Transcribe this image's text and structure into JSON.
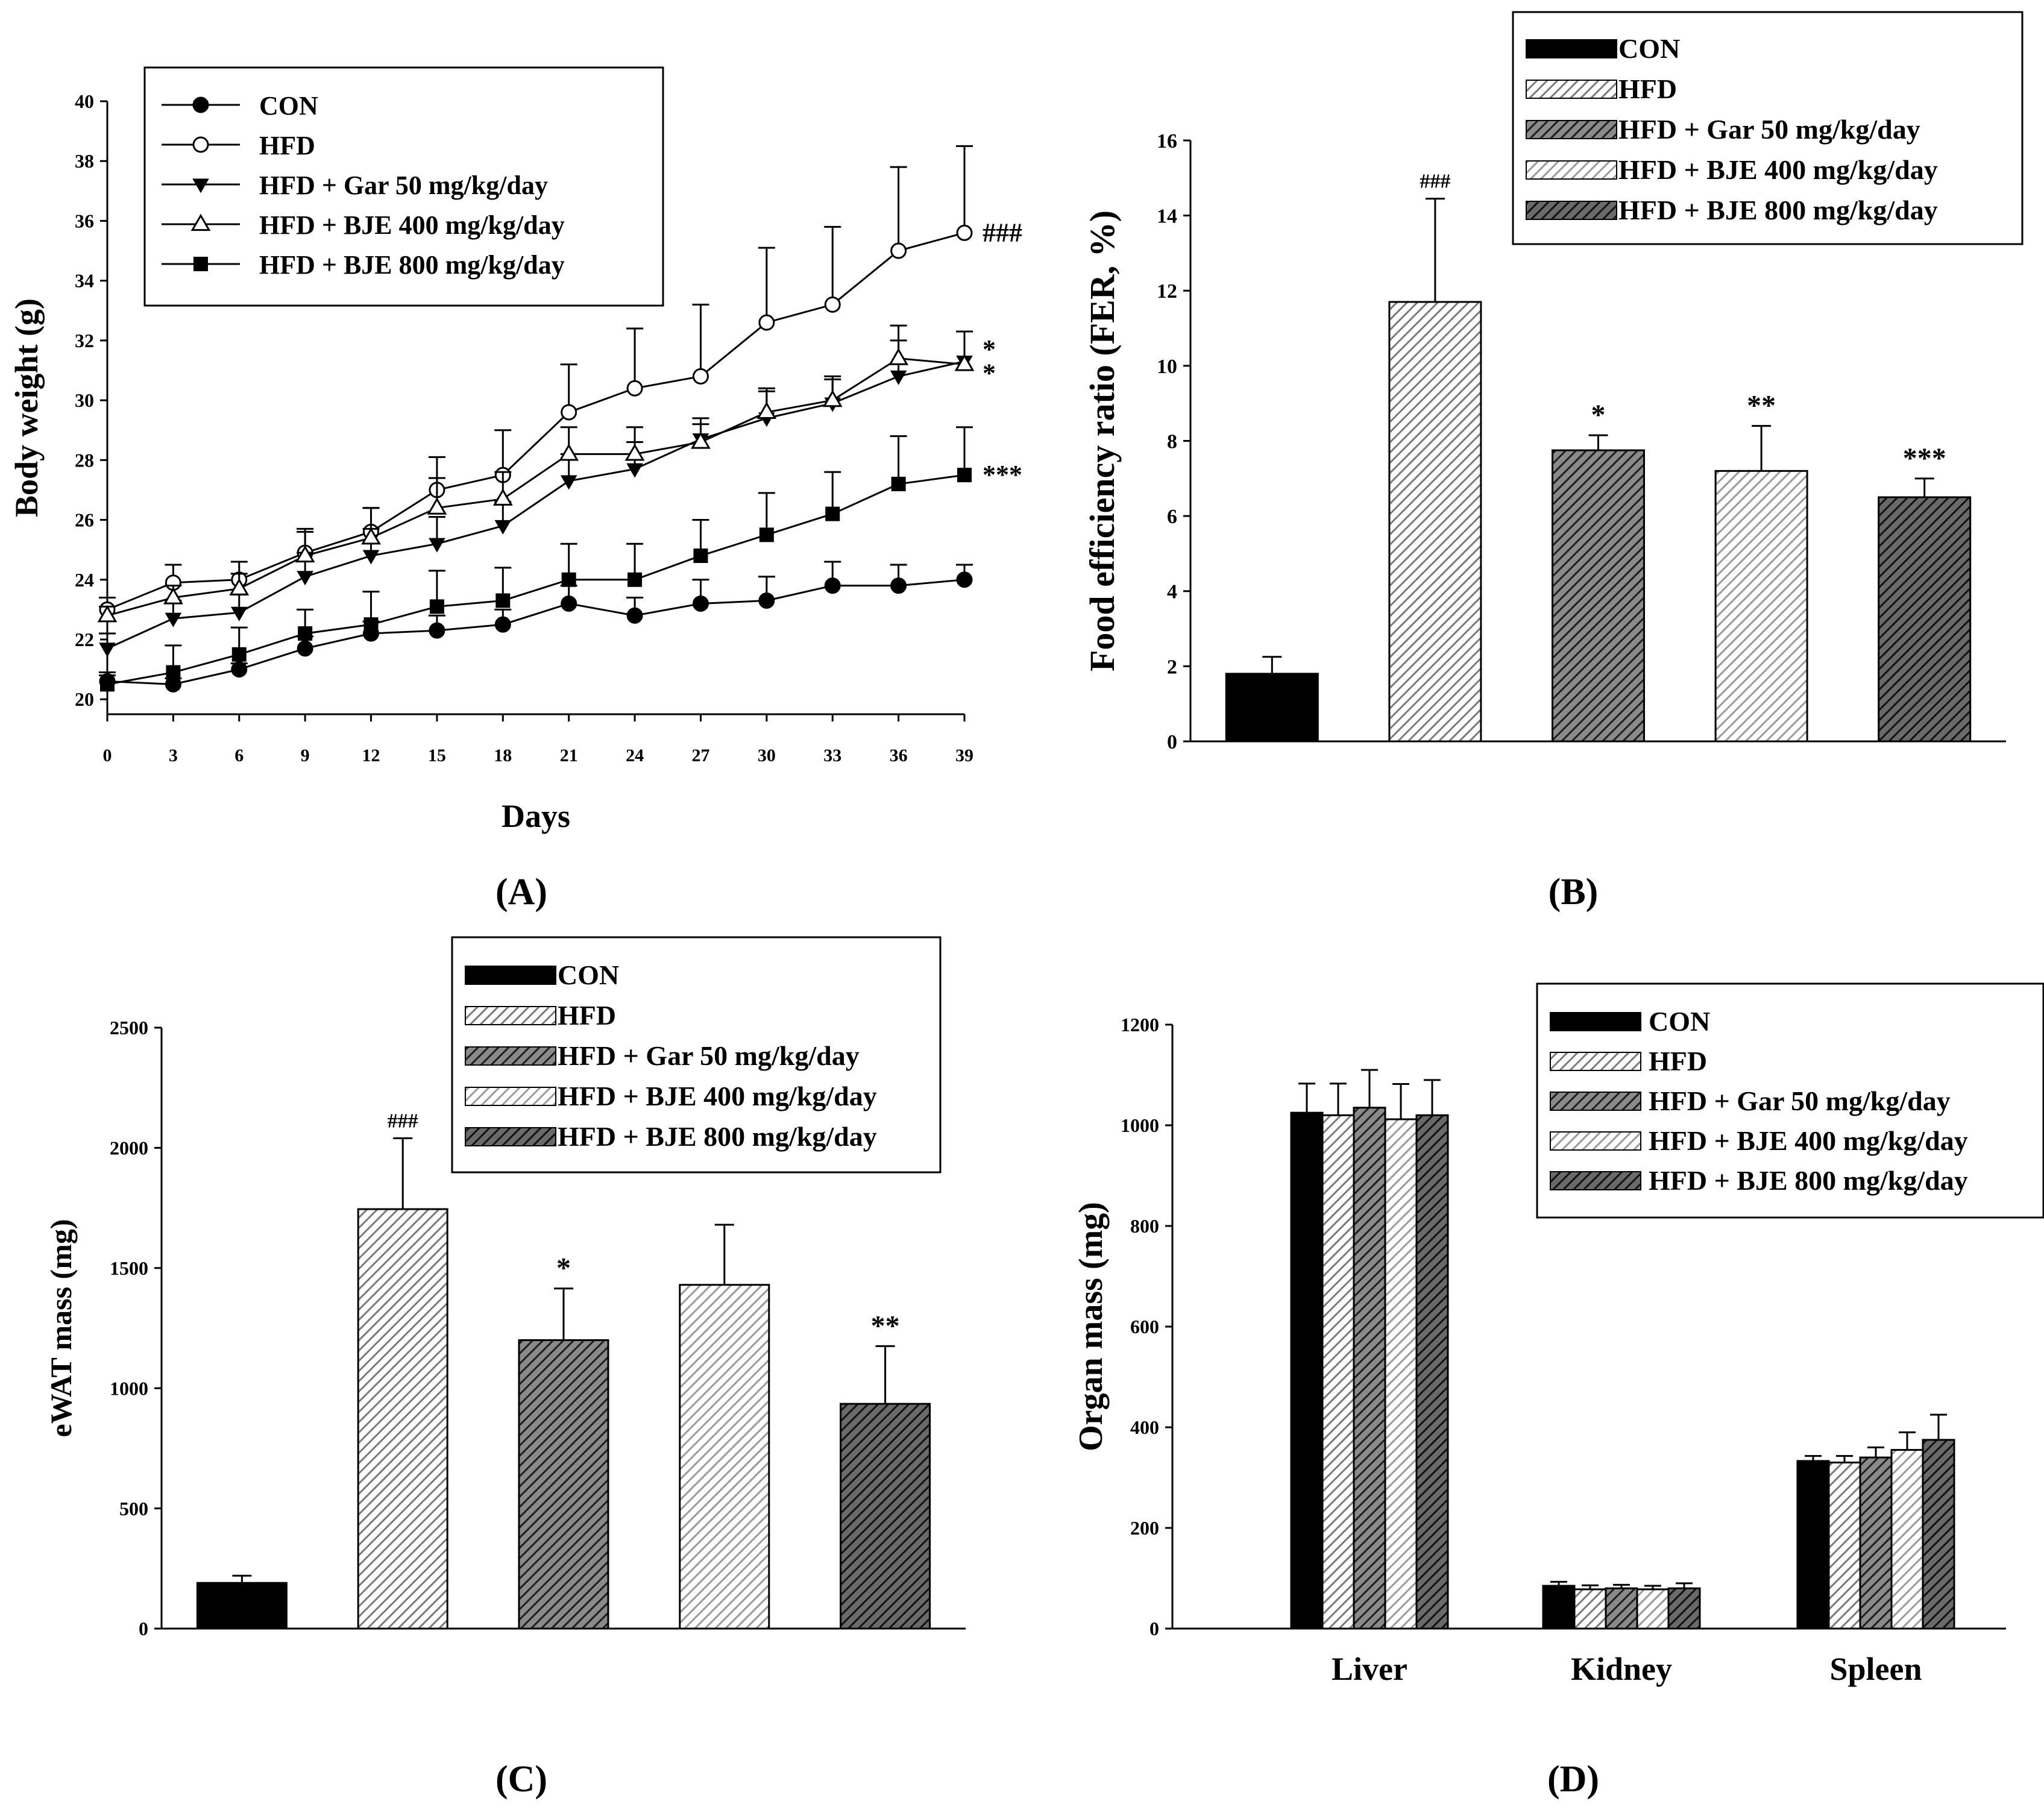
{
  "chart_data": [
    {
      "id": "A",
      "type": "line",
      "panel_label": "(A)",
      "xlabel": "Days",
      "ylabel": "Body weight (g)",
      "xlim": [
        0,
        39
      ],
      "ylim": [
        19.5,
        40
      ],
      "xticks": [
        0,
        3,
        6,
        9,
        12,
        15,
        18,
        21,
        24,
        27,
        30,
        33,
        36,
        39
      ],
      "yticks": [
        20,
        22,
        24,
        26,
        28,
        30,
        32,
        34,
        36,
        38,
        40
      ],
      "x": [
        0,
        3,
        6,
        9,
        12,
        15,
        18,
        21,
        24,
        27,
        30,
        33,
        36,
        39
      ],
      "legend": {
        "position": "top-left"
      },
      "series": [
        {
          "name": "CON",
          "marker": "filled-circle",
          "values": [
            20.6,
            20.5,
            21.0,
            21.7,
            22.2,
            22.3,
            22.5,
            23.2,
            22.8,
            23.2,
            23.3,
            23.8,
            23.8,
            24.0
          ],
          "errors": [
            0.2,
            0.2,
            0.2,
            0.4,
            0.4,
            0.5,
            0.5,
            0.6,
            0.6,
            0.8,
            0.8,
            0.8,
            0.7,
            0.5
          ]
        },
        {
          "name": "HFD",
          "marker": "open-circle",
          "values": [
            23.0,
            23.9,
            24.0,
            24.9,
            25.6,
            27.0,
            27.5,
            29.6,
            30.4,
            30.8,
            32.6,
            33.2,
            35.0,
            35.6
          ],
          "errors": [
            0.4,
            0.6,
            0.6,
            0.7,
            0.8,
            1.1,
            1.5,
            1.6,
            2.0,
            2.4,
            2.5,
            2.6,
            2.8,
            2.9
          ]
        },
        {
          "name": "HFD + Gar 50 mg/kg/day",
          "marker": "filled-triangle-down",
          "values": [
            21.7,
            22.7,
            22.9,
            24.1,
            24.8,
            25.2,
            25.8,
            27.3,
            27.7,
            28.7,
            29.4,
            29.9,
            30.8,
            31.3
          ],
          "errors": [
            0.5,
            0.6,
            0.6,
            0.8,
            0.9,
            0.9,
            0.8,
            0.9,
            0.9,
            0.7,
            0.9,
            0.8,
            1.2,
            1.0
          ]
        },
        {
          "name": "HFD + BJE 400 mg/kg/day",
          "marker": "open-triangle-up",
          "values": [
            22.8,
            23.4,
            23.7,
            24.8,
            25.4,
            26.4,
            26.7,
            28.2,
            28.2,
            28.6,
            29.6,
            30.0,
            31.4,
            31.2
          ],
          "errors": [
            0.3,
            0.4,
            0.5,
            0.9,
            1.0,
            1.0,
            0.9,
            0.9,
            0.9,
            0.6,
            0.8,
            0.8,
            1.1,
            1.1
          ]
        },
        {
          "name": "HFD + BJE 800 mg/kg/day",
          "marker": "filled-square",
          "values": [
            20.5,
            20.9,
            21.5,
            22.2,
            22.5,
            23.1,
            23.3,
            24.0,
            24.0,
            24.8,
            25.5,
            26.2,
            27.2,
            27.5
          ],
          "errors": [
            0.4,
            0.9,
            0.9,
            0.8,
            1.1,
            1.2,
            1.1,
            1.2,
            1.2,
            1.2,
            1.4,
            1.4,
            1.6,
            1.6
          ]
        }
      ],
      "annotations": [
        {
          "text": "###",
          "x": 39,
          "y": 35.6
        },
        {
          "text": "*",
          "x": 39,
          "y": 31.7
        },
        {
          "text": "*",
          "x": 39,
          "y": 30.9
        },
        {
          "text": "***",
          "x": 39,
          "y": 27.5
        }
      ]
    },
    {
      "id": "B",
      "type": "bar",
      "panel_label": "(B)",
      "xlabel": "",
      "ylabel": "Food efficiency ratio (FER, %)",
      "ylim": [
        0,
        16
      ],
      "yticks": [
        0,
        2,
        4,
        6,
        8,
        10,
        12,
        14,
        16
      ],
      "categories": [
        "CON",
        "HFD",
        "HFD + Gar 50 mg/kg/day",
        "HFD + BJE 400 mg/kg/day",
        "HFD + BJE 800 mg/kg/day"
      ],
      "values": [
        1.8,
        11.7,
        7.75,
        7.2,
        6.5
      ],
      "errors": [
        0.45,
        2.75,
        0.4,
        1.2,
        0.5
      ],
      "labels": [
        "",
        "###",
        "*",
        "**",
        "***"
      ],
      "legend": {
        "position": "top-right"
      }
    },
    {
      "id": "C",
      "type": "bar",
      "panel_label": "(C)",
      "xlabel": "",
      "ylabel": "eWAT mass (mg)",
      "ylim": [
        0,
        2500
      ],
      "yticks": [
        0,
        500,
        1000,
        1500,
        2000,
        2500
      ],
      "categories": [
        "CON",
        "HFD",
        "HFD + Gar 50 mg/kg/day",
        "HFD + BJE 400 mg/kg/day",
        "HFD + BJE 800 mg/kg/day"
      ],
      "values": [
        190,
        1745,
        1200,
        1430,
        935
      ],
      "errors": [
        30,
        295,
        215,
        250,
        240
      ],
      "labels": [
        "",
        "###",
        "*",
        "",
        "**"
      ],
      "legend": {
        "position": "top-right"
      }
    },
    {
      "id": "D",
      "type": "bar",
      "panel_label": "(D)",
      "xlabel": "",
      "ylabel": "Organ mass (mg)",
      "ylim": [
        0,
        1200
      ],
      "yticks": [
        0,
        200,
        400,
        600,
        800,
        1000,
        1200
      ],
      "categories": [
        "Liver",
        "Kidney",
        "Spleen"
      ],
      "series": [
        {
          "name": "CON",
          "values": [
            1025,
            85,
            333
          ],
          "errors": [
            58,
            8,
            10
          ]
        },
        {
          "name": "HFD",
          "values": [
            1020,
            78,
            330
          ],
          "errors": [
            63,
            8,
            13
          ]
        },
        {
          "name": "HFD + Gar 50 mg/kg/day",
          "values": [
            1035,
            80,
            340
          ],
          "errors": [
            75,
            7,
            20
          ]
        },
        {
          "name": "HFD + BJE 400 mg/kg/day",
          "values": [
            1012,
            78,
            355
          ],
          "errors": [
            70,
            7,
            35
          ]
        },
        {
          "name": "HFD + BJE 800 mg/kg/day",
          "values": [
            1020,
            80,
            375
          ],
          "errors": [
            70,
            10,
            50
          ]
        }
      ],
      "legend": {
        "position": "top-right"
      }
    }
  ],
  "styles": {
    "line_markers": [
      "filled-circle",
      "open-circle",
      "filled-triangle-down",
      "open-triangle-up",
      "filled-square"
    ],
    "bar_fills": [
      {
        "bg": "#000000",
        "stripe": "none"
      },
      {
        "bg": "#ffffff",
        "stripe": "#7a7a7a"
      },
      {
        "bg": "#8a8a8a",
        "stripe": "#1e1e1e"
      },
      {
        "bg": "#ffffff",
        "stripe": "#9a9a9a"
      },
      {
        "bg": "#6a6a6a",
        "stripe": "#111111"
      }
    ]
  }
}
